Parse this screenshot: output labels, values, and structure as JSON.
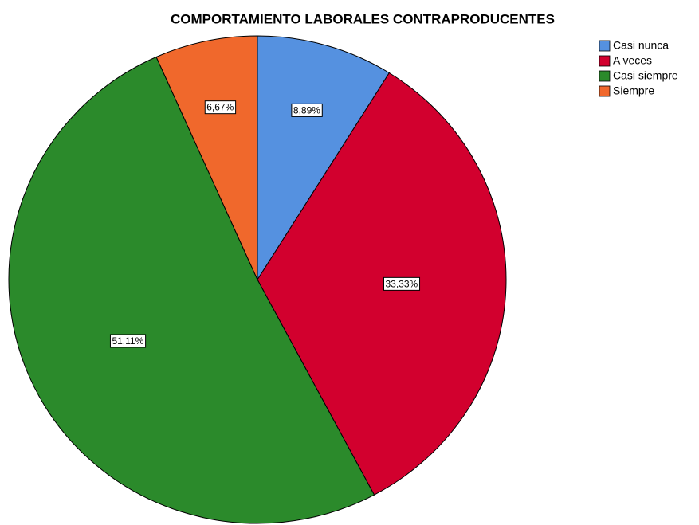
{
  "chart_data": {
    "type": "pie",
    "title": "COMPORTAMIENTO LABORALES CONTRAPRODUCENTES",
    "categories": [
      "Casi nunca",
      "A veces",
      "Casi siempre",
      "Siempre"
    ],
    "values": [
      8.89,
      33.33,
      51.11,
      6.67
    ],
    "value_labels": [
      "8,89%",
      "33,33%",
      "51,11%",
      "6,67%"
    ],
    "colors": [
      "#5591e0",
      "#d2002e",
      "#2b8a2b",
      "#f0682c"
    ],
    "legend": "top-right"
  }
}
